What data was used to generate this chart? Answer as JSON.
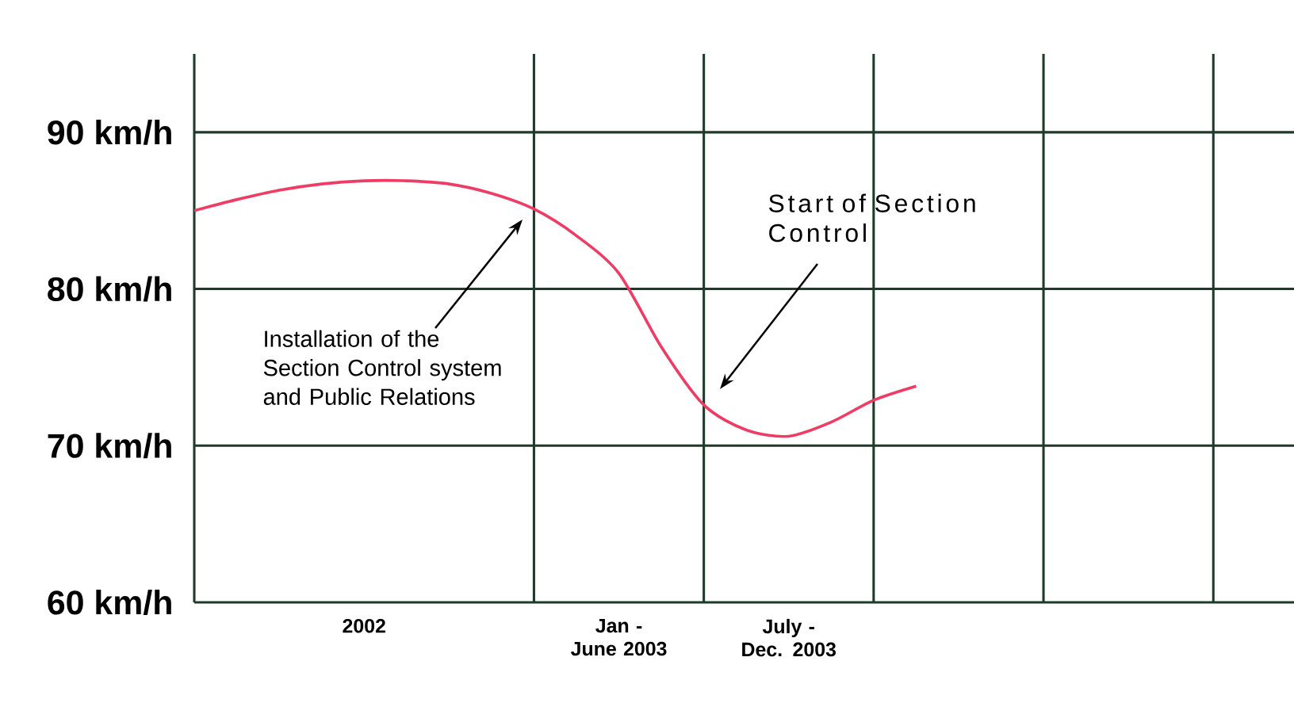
{
  "chart_data": {
    "type": "line",
    "categories": [
      null,
      null,
      null,
      null,
      "2002",
      null,
      null,
      null,
      null,
      null,
      "Jan - June 2003",
      null,
      null,
      null,
      "July - Dec. 2003",
      null,
      null,
      null,
      null,
      null,
      null,
      null,
      null,
      null,
      null,
      null
    ],
    "series": [
      {
        "color": "#f03c64",
        "values": [
          85.0,
          85.7,
          86.3,
          86.7,
          86.9,
          86.9,
          86.7,
          86.1,
          85.1,
          83.4,
          81.0,
          76.3,
          72.6,
          71.0,
          70.6,
          71.5,
          72.9,
          73.8,
          null,
          null,
          null,
          null,
          null,
          null,
          null,
          null
        ]
      }
    ],
    "ylim": [
      60,
      95
    ],
    "yticks": [
      {
        "value": 60,
        "label": "60 km/h"
      },
      {
        "value": 70,
        "label": "70 km/h"
      },
      {
        "value": 80,
        "label": "80 km/h"
      },
      {
        "value": 90,
        "label": "90 km/h"
      }
    ],
    "grid": true,
    "marker": "none",
    "line_style": "solid",
    "annotations": [
      "Installation of the Section Control system and Public Relations",
      "Start of Section Control"
    ]
  }
}
